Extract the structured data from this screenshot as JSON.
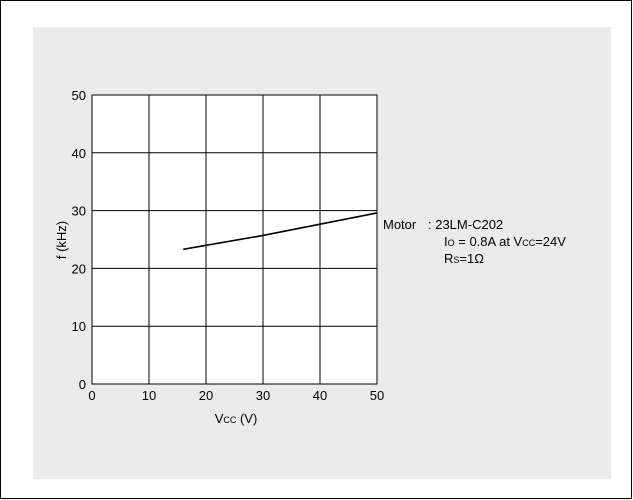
{
  "chart_data": {
    "type": "line",
    "xlabel": "Vcc (V)",
    "ylabel": "f (kHz)",
    "xlim": [
      0,
      50
    ],
    "ylim": [
      0,
      50
    ],
    "x_ticks": [
      "0",
      "10",
      "20",
      "30",
      "40",
      "50"
    ],
    "y_ticks": [
      "0",
      "10",
      "20",
      "30",
      "40",
      "50"
    ],
    "grid": true,
    "series": [
      {
        "x": [
          16,
          30,
          50
        ],
        "y": [
          23.3,
          25.7,
          29.6
        ]
      }
    ],
    "annotation": {
      "motor_label": "Motor",
      "motor_value": ": 23LM-C202",
      "io_line": "Io = 0.8A at Vcc=24V",
      "rs_line": "Rs=1Ω"
    }
  }
}
